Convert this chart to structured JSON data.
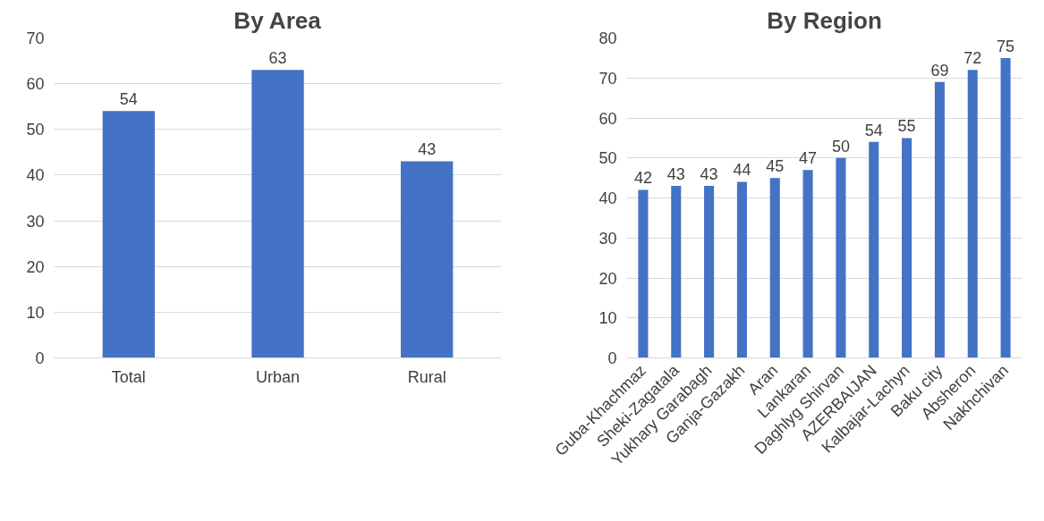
{
  "chart_data": [
    {
      "type": "bar",
      "title": "By Area",
      "categories": [
        "Total",
        "Urban",
        "Rural"
      ],
      "values": [
        54,
        63,
        43
      ],
      "color": "#4472c4",
      "ylim": [
        0,
        70
      ],
      "yticks": [
        0,
        10,
        20,
        30,
        40,
        50,
        60,
        70
      ],
      "grid": "y",
      "data_labels": true
    },
    {
      "type": "bar",
      "title": "By Region",
      "categories": [
        "Guba-Khachmaz",
        "Sheki-Zagatala",
        "Yukhary Garabagh",
        "Ganja-Gazakh",
        "Aran",
        "Lankaran",
        "Daghlyg Shirvan",
        "AZERBAIJAN",
        "Kalbajar-Lachyn",
        "Baku city",
        "Absheron",
        "Nakhchivan"
      ],
      "values": [
        42,
        43,
        43,
        44,
        45,
        47,
        50,
        54,
        55,
        69,
        72,
        75
      ],
      "color": "#4472c4",
      "ylim": [
        0,
        80
      ],
      "yticks": [
        0,
        10,
        20,
        30,
        40,
        50,
        60,
        70,
        80
      ],
      "grid": "y",
      "data_labels": true
    }
  ]
}
